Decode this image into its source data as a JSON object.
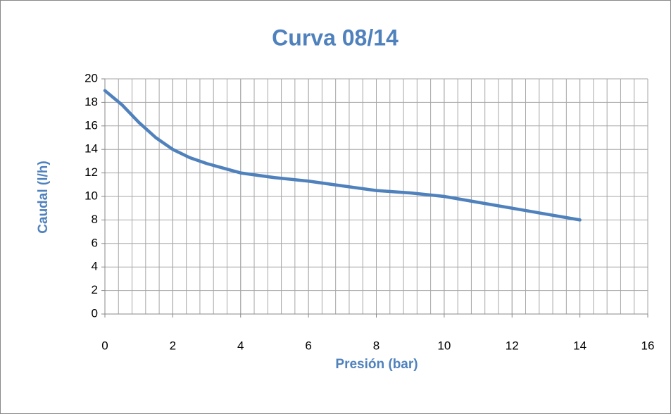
{
  "chart_data": {
    "type": "line",
    "title": "Curva 08/14",
    "xlabel": "Presión (bar)",
    "ylabel": "Caudal (l/h)",
    "x": [
      0,
      0.5,
      1,
      1.5,
      2,
      2.5,
      3,
      3.5,
      4,
      5,
      6,
      7,
      8,
      9,
      10,
      11,
      12,
      13,
      14
    ],
    "series": [
      {
        "name": "Caudal",
        "color": "#4f81bd",
        "values": [
          19,
          17.8,
          16.3,
          15,
          14,
          13.3,
          12.8,
          12.4,
          12,
          11.6,
          11.3,
          10.9,
          10.5,
          10.3,
          10,
          9.5,
          9,
          8.5,
          8
        ]
      }
    ],
    "xlim": [
      0,
      16
    ],
    "xticks": [
      0,
      2,
      4,
      6,
      8,
      10,
      12,
      14,
      16
    ],
    "ylim": [
      0,
      20
    ],
    "yticks": [
      0,
      2,
      4,
      6,
      8,
      10,
      12,
      14,
      16,
      18,
      20
    ],
    "grid": true,
    "x_minor_grid": 0.4
  }
}
